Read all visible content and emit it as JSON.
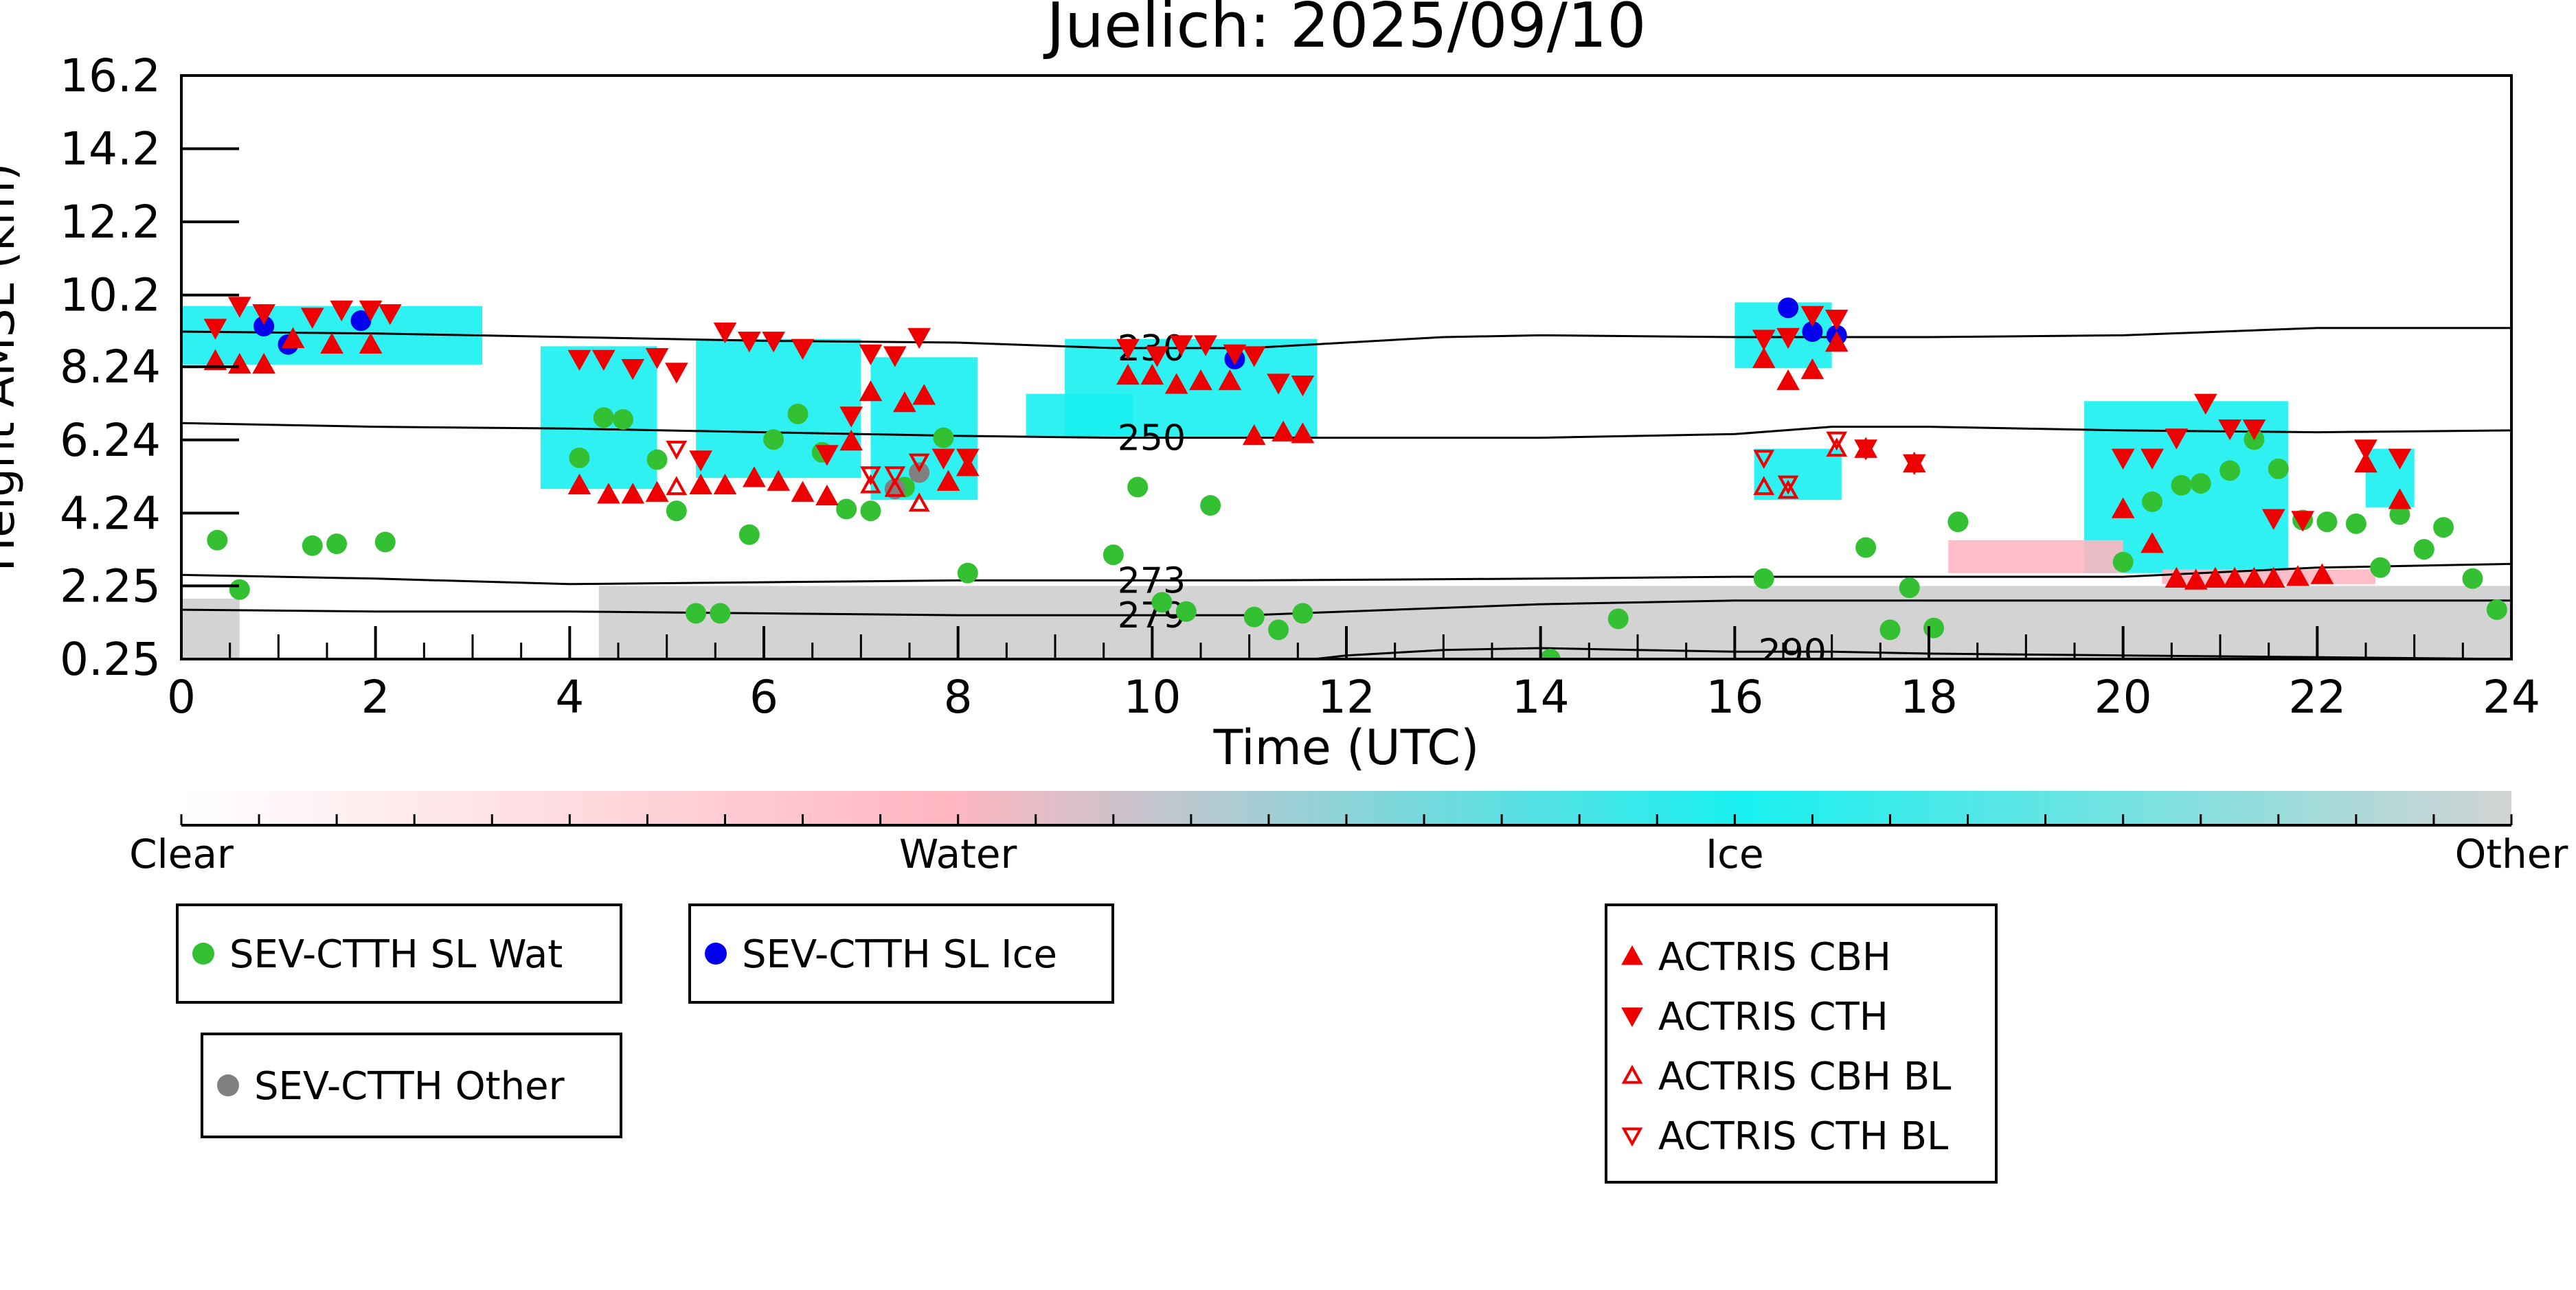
{
  "chart_data": {
    "type": "scatter",
    "title": "Juelich: 2025/09/10",
    "xlabel": "Time (UTC)",
    "ylabel": "Height AMSL (km)",
    "xlim": [
      0,
      24
    ],
    "ylim": [
      0.25,
      16.2
    ],
    "x_ticks": [
      0,
      2,
      4,
      6,
      8,
      10,
      12,
      14,
      16,
      18,
      20,
      22,
      24
    ],
    "y_ticks": [
      0.25,
      2.25,
      4.24,
      6.24,
      8.24,
      10.2,
      12.2,
      14.2,
      16.2
    ],
    "y_tick_labels": [
      "0.25",
      "2.25",
      "4.24",
      "6.24",
      "8.24",
      "10.2",
      "12.2",
      "14.2",
      "16.2"
    ],
    "grid": false,
    "colorbar": {
      "labels": [
        "Clear",
        "Water",
        "Ice",
        "Other"
      ],
      "colors": [
        "#ffffff",
        "#ffb6c1",
        "#19f0f0",
        "#d3d3d3"
      ]
    },
    "isotherms": [
      {
        "label": "230",
        "label_x": 9.6,
        "points": [
          [
            0,
            9.2
          ],
          [
            2,
            9.15
          ],
          [
            4,
            9.05
          ],
          [
            6,
            8.95
          ],
          [
            8,
            8.9
          ],
          [
            9.6,
            8.75
          ],
          [
            11,
            8.75
          ],
          [
            12,
            8.9
          ],
          [
            13,
            9.05
          ],
          [
            14,
            9.1
          ],
          [
            16,
            9.05
          ],
          [
            18,
            9.05
          ],
          [
            20,
            9.1
          ],
          [
            22,
            9.3
          ],
          [
            24,
            9.3
          ]
        ]
      },
      {
        "label": "250",
        "label_x": 9.6,
        "points": [
          [
            0,
            6.7
          ],
          [
            2,
            6.6
          ],
          [
            4,
            6.55
          ],
          [
            6,
            6.45
          ],
          [
            8,
            6.35
          ],
          [
            9.6,
            6.3
          ],
          [
            11,
            6.3
          ],
          [
            12,
            6.3
          ],
          [
            14,
            6.3
          ],
          [
            16,
            6.4
          ],
          [
            17,
            6.6
          ],
          [
            18,
            6.6
          ],
          [
            20,
            6.5
          ],
          [
            22,
            6.45
          ],
          [
            24,
            6.5
          ]
        ]
      },
      {
        "label": "273",
        "label_x": 9.6,
        "points": [
          [
            0,
            2.55
          ],
          [
            2,
            2.45
          ],
          [
            4,
            2.3
          ],
          [
            6,
            2.35
          ],
          [
            8,
            2.4
          ],
          [
            9.6,
            2.4
          ],
          [
            11,
            2.4
          ],
          [
            14,
            2.45
          ],
          [
            16,
            2.5
          ],
          [
            18,
            2.5
          ],
          [
            20,
            2.5
          ],
          [
            22,
            2.75
          ],
          [
            24,
            2.85
          ]
        ]
      },
      {
        "label": "279",
        "label_x": 9.6,
        "points": [
          [
            0,
            1.6
          ],
          [
            2,
            1.55
          ],
          [
            4,
            1.55
          ],
          [
            6,
            1.5
          ],
          [
            8,
            1.45
          ],
          [
            9.6,
            1.45
          ],
          [
            11,
            1.45
          ],
          [
            12,
            1.55
          ],
          [
            14,
            1.75
          ],
          [
            16,
            1.85
          ],
          [
            18,
            1.85
          ],
          [
            20,
            1.85
          ],
          [
            22,
            1.85
          ],
          [
            24,
            1.85
          ]
        ]
      },
      {
        "label": "290",
        "label_x": 16.2,
        "points": [
          [
            11.5,
            0.2
          ],
          [
            12,
            0.35
          ],
          [
            13,
            0.5
          ],
          [
            14,
            0.55
          ],
          [
            15,
            0.5
          ],
          [
            16,
            0.45
          ],
          [
            17,
            0.45
          ],
          [
            18,
            0.4
          ],
          [
            20,
            0.35
          ],
          [
            22,
            0.3
          ],
          [
            24,
            0.25
          ]
        ]
      }
    ],
    "cloud_patches": [
      {
        "phase": "Ice",
        "x0": 0.0,
        "x1": 3.1,
        "y0": 8.3,
        "y1": 9.9
      },
      {
        "phase": "Ice",
        "x0": 3.7,
        "x1": 4.9,
        "y0": 4.9,
        "y1": 8.8
      },
      {
        "phase": "Ice",
        "x0": 5.3,
        "x1": 7.0,
        "y0": 5.2,
        "y1": 9.0
      },
      {
        "phase": "Ice",
        "x0": 7.1,
        "x1": 8.2,
        "y0": 4.6,
        "y1": 8.5
      },
      {
        "phase": "Ice",
        "x0": 8.7,
        "x1": 9.8,
        "y0": 6.3,
        "y1": 7.5
      },
      {
        "phase": "Ice",
        "x0": 9.1,
        "x1": 11.7,
        "y0": 6.3,
        "y1": 9.0
      },
      {
        "phase": "Ice",
        "x0": 16.0,
        "x1": 17.0,
        "y0": 8.2,
        "y1": 10.0
      },
      {
        "phase": "Ice",
        "x0": 16.2,
        "x1": 17.1,
        "y0": 4.6,
        "y1": 6.0
      },
      {
        "phase": "Ice",
        "x0": 19.6,
        "x1": 21.7,
        "y0": 2.6,
        "y1": 7.3
      },
      {
        "phase": "Ice",
        "x0": 22.5,
        "x1": 23.0,
        "y0": 4.4,
        "y1": 6.0
      },
      {
        "phase": "Water",
        "x0": 18.2,
        "x1": 20.0,
        "y0": 2.6,
        "y1": 3.5
      },
      {
        "phase": "Water",
        "x0": 20.4,
        "x1": 22.6,
        "y0": 2.3,
        "y1": 2.7
      },
      {
        "phase": "Other",
        "x0": 4.3,
        "x1": 24.0,
        "y0": 0.25,
        "y1": 2.25
      },
      {
        "phase": "Other",
        "x0": 0.0,
        "x1": 0.6,
        "y0": 0.25,
        "y1": 1.9
      }
    ],
    "legend_groups": [
      {
        "position": "bottom-left",
        "items": [
          {
            "label": "SEV-CTTH SL Wat",
            "marker": "circle",
            "color": "#33c133"
          }
        ]
      },
      {
        "position": "bottom-left",
        "items": [
          {
            "label": "SEV-CTTH SL Ice",
            "marker": "circle",
            "color": "#0000ee"
          }
        ]
      },
      {
        "position": "bottom-left",
        "items": [
          {
            "label": "SEV-CTTH Other",
            "marker": "circle",
            "color": "#808080"
          }
        ]
      },
      {
        "position": "bottom-center",
        "items": [
          {
            "label": "ACTRIS CBH",
            "marker": "triangle-up",
            "color": "#ee0000"
          },
          {
            "label": "ACTRIS CTH",
            "marker": "triangle-down",
            "color": "#ee0000"
          },
          {
            "label": "ACTRIS CBH BL",
            "marker": "triangle-up-open",
            "color": "#ee0000"
          },
          {
            "label": "ACTRIS CTH BL",
            "marker": "triangle-down-open",
            "color": "#ee0000"
          }
        ]
      }
    ],
    "series": [
      {
        "name": "SEV-CTTH SL Wat",
        "marker": "circle",
        "color": "#33c133",
        "points": [
          [
            0.37,
            3.5
          ],
          [
            0.6,
            2.15
          ],
          [
            1.35,
            3.35
          ],
          [
            1.6,
            3.4
          ],
          [
            2.1,
            3.45
          ],
          [
            4.1,
            5.75
          ],
          [
            4.35,
            6.85
          ],
          [
            4.55,
            6.8
          ],
          [
            4.9,
            5.7
          ],
          [
            5.1,
            4.3
          ],
          [
            5.3,
            1.5
          ],
          [
            5.55,
            1.5
          ],
          [
            5.85,
            3.65
          ],
          [
            6.1,
            6.25
          ],
          [
            6.35,
            6.95
          ],
          [
            6.6,
            5.9
          ],
          [
            6.85,
            4.35
          ],
          [
            7.1,
            4.3
          ],
          [
            7.45,
            4.95
          ],
          [
            7.85,
            6.3
          ],
          [
            8.1,
            2.6
          ],
          [
            9.6,
            3.1
          ],
          [
            9.85,
            4.95
          ],
          [
            10.1,
            1.8
          ],
          [
            10.35,
            1.55
          ],
          [
            10.6,
            4.45
          ],
          [
            11.05,
            1.4
          ],
          [
            11.3,
            1.05
          ],
          [
            11.55,
            1.5
          ],
          [
            14.1,
            0.25
          ],
          [
            14.8,
            1.35
          ],
          [
            16.3,
            2.45
          ],
          [
            17.35,
            3.3
          ],
          [
            17.6,
            1.05
          ],
          [
            17.8,
            2.2
          ],
          [
            18.05,
            1.1
          ],
          [
            18.3,
            4.0
          ],
          [
            20.0,
            2.9
          ],
          [
            20.3,
            4.55
          ],
          [
            20.6,
            5.0
          ],
          [
            20.8,
            5.05
          ],
          [
            21.1,
            5.4
          ],
          [
            21.35,
            6.25
          ],
          [
            21.6,
            5.45
          ],
          [
            21.85,
            4.05
          ],
          [
            22.1,
            4.0
          ],
          [
            22.4,
            3.95
          ],
          [
            22.65,
            2.75
          ],
          [
            22.85,
            4.2
          ],
          [
            23.1,
            3.25
          ],
          [
            23.3,
            3.85
          ],
          [
            23.6,
            2.45
          ],
          [
            23.85,
            1.6
          ]
        ]
      },
      {
        "name": "SEV-CTTH SL Ice",
        "marker": "circle",
        "color": "#0000ee",
        "points": [
          [
            0.85,
            9.35
          ],
          [
            1.1,
            8.85
          ],
          [
            1.85,
            9.5
          ],
          [
            10.85,
            8.45
          ],
          [
            16.55,
            9.85
          ],
          [
            16.8,
            9.2
          ],
          [
            17.05,
            9.1
          ]
        ]
      },
      {
        "name": "SEV-CTTH Other",
        "marker": "circle",
        "color": "#808080",
        "points": [
          [
            7.35,
            4.9
          ],
          [
            7.6,
            5.35
          ]
        ]
      },
      {
        "name": "ACTRIS CBH",
        "marker": "triangle-up",
        "color": "#ee0000",
        "points": [
          [
            0.35,
            8.4
          ],
          [
            0.6,
            8.3
          ],
          [
            0.85,
            8.3
          ],
          [
            1.15,
            9.0
          ],
          [
            1.55,
            8.85
          ],
          [
            1.95,
            8.85
          ],
          [
            4.1,
            5.0
          ],
          [
            4.4,
            4.75
          ],
          [
            4.65,
            4.75
          ],
          [
            4.9,
            4.8
          ],
          [
            5.35,
            5.0
          ],
          [
            5.6,
            5.0
          ],
          [
            5.9,
            5.2
          ],
          [
            6.15,
            5.1
          ],
          [
            6.4,
            4.8
          ],
          [
            6.65,
            4.7
          ],
          [
            6.9,
            6.2
          ],
          [
            7.1,
            7.55
          ],
          [
            7.45,
            7.25
          ],
          [
            7.65,
            7.45
          ],
          [
            7.9,
            5.1
          ],
          [
            8.1,
            5.5
          ],
          [
            9.75,
            8.0
          ],
          [
            10.0,
            8.0
          ],
          [
            10.25,
            7.75
          ],
          [
            10.5,
            7.85
          ],
          [
            10.8,
            7.85
          ],
          [
            11.05,
            6.35
          ],
          [
            11.35,
            6.45
          ],
          [
            11.55,
            6.4
          ],
          [
            16.3,
            8.45
          ],
          [
            16.55,
            7.85
          ],
          [
            16.8,
            8.15
          ],
          [
            17.05,
            8.9
          ],
          [
            17.35,
            6.0
          ],
          [
            17.85,
            5.6
          ],
          [
            20.0,
            4.35
          ],
          [
            20.3,
            3.4
          ],
          [
            20.55,
            2.45
          ],
          [
            20.75,
            2.4
          ],
          [
            20.95,
            2.45
          ],
          [
            21.15,
            2.45
          ],
          [
            21.35,
            2.45
          ],
          [
            21.55,
            2.45
          ],
          [
            21.8,
            2.5
          ],
          [
            22.05,
            2.55
          ],
          [
            22.5,
            5.6
          ],
          [
            22.85,
            4.6
          ]
        ]
      },
      {
        "name": "ACTRIS CTH",
        "marker": "triangle-down",
        "color": "#ee0000",
        "points": [
          [
            0.35,
            9.3
          ],
          [
            0.6,
            9.9
          ],
          [
            0.85,
            9.7
          ],
          [
            1.35,
            9.6
          ],
          [
            1.65,
            9.8
          ],
          [
            1.95,
            9.8
          ],
          [
            2.15,
            9.7
          ],
          [
            4.1,
            8.45
          ],
          [
            4.35,
            8.45
          ],
          [
            4.65,
            8.2
          ],
          [
            4.9,
            8.5
          ],
          [
            5.1,
            8.1
          ],
          [
            5.35,
            5.7
          ],
          [
            5.6,
            9.2
          ],
          [
            5.85,
            8.95
          ],
          [
            6.1,
            8.95
          ],
          [
            6.4,
            8.75
          ],
          [
            6.65,
            5.85
          ],
          [
            6.9,
            6.9
          ],
          [
            7.1,
            8.6
          ],
          [
            7.35,
            8.55
          ],
          [
            7.6,
            9.05
          ],
          [
            7.85,
            5.75
          ],
          [
            8.1,
            5.75
          ],
          [
            9.75,
            8.75
          ],
          [
            10.05,
            8.55
          ],
          [
            10.3,
            8.85
          ],
          [
            10.55,
            8.85
          ],
          [
            10.85,
            8.6
          ],
          [
            11.05,
            8.55
          ],
          [
            11.3,
            7.8
          ],
          [
            11.55,
            7.75
          ],
          [
            16.3,
            9.0
          ],
          [
            16.55,
            9.05
          ],
          [
            16.8,
            9.65
          ],
          [
            17.05,
            9.55
          ],
          [
            17.35,
            6.0
          ],
          [
            17.85,
            5.6
          ],
          [
            20.0,
            5.75
          ],
          [
            20.3,
            5.75
          ],
          [
            20.55,
            6.3
          ],
          [
            20.85,
            7.25
          ],
          [
            21.1,
            6.55
          ],
          [
            21.35,
            6.55
          ],
          [
            21.55,
            4.1
          ],
          [
            21.85,
            4.05
          ],
          [
            22.5,
            6.0
          ],
          [
            22.85,
            5.75
          ]
        ]
      },
      {
        "name": "ACTRIS CBH BL",
        "marker": "triangle-up-open",
        "color": "#ee0000",
        "points": [
          [
            5.1,
            4.95
          ],
          [
            7.1,
            5.0
          ],
          [
            7.35,
            4.9
          ],
          [
            7.6,
            4.5
          ],
          [
            16.3,
            4.95
          ],
          [
            16.55,
            4.85
          ],
          [
            17.05,
            6.0
          ]
        ]
      },
      {
        "name": "ACTRIS CTH BL",
        "marker": "triangle-down-open",
        "color": "#ee0000",
        "points": [
          [
            5.1,
            6.0
          ],
          [
            7.1,
            5.3
          ],
          [
            7.35,
            5.3
          ],
          [
            7.6,
            5.65
          ],
          [
            16.3,
            5.75
          ],
          [
            16.55,
            5.05
          ],
          [
            17.05,
            6.25
          ]
        ]
      }
    ]
  }
}
